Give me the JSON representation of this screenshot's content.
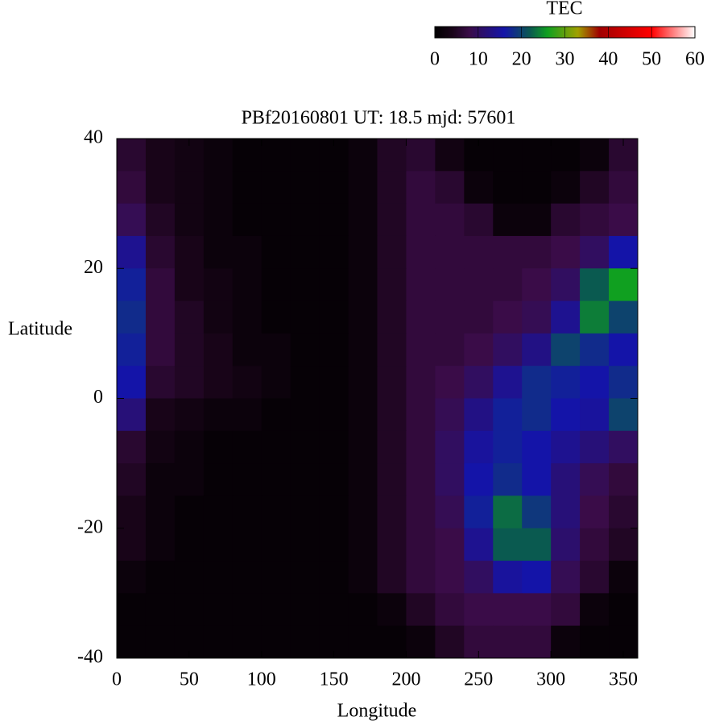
{
  "chart_data": {
    "type": "heatmap",
    "title": "PBf20160801  UT: 18.5  mjd: 57601",
    "x_label": "Longitude",
    "y_label": "Latitude",
    "colorbar_label": "TEC",
    "xlim": [
      0,
      360
    ],
    "ylim": [
      -40,
      40
    ],
    "xticks": [
      0,
      50,
      100,
      150,
      200,
      250,
      300,
      350
    ],
    "yticks": [
      -40,
      -20,
      0,
      20,
      40
    ],
    "zlim": [
      0,
      60
    ],
    "zticks": [
      0,
      10,
      20,
      30,
      40,
      50,
      60
    ],
    "colormap": [
      {
        "value": 0,
        "color": "#000000"
      },
      {
        "value": 4,
        "color": "#180418"
      },
      {
        "value": 8,
        "color": "#3a0c48"
      },
      {
        "value": 16,
        "color": "#1414a8"
      },
      {
        "value": 22,
        "color": "#0a5a50"
      },
      {
        "value": 26,
        "color": "#10a020"
      },
      {
        "value": 33,
        "color": "#a0a000"
      },
      {
        "value": 38,
        "color": "#a00000"
      },
      {
        "value": 50,
        "color": "#ff0000"
      },
      {
        "value": 60,
        "color": "#ffffff"
      }
    ],
    "x": [
      10,
      30,
      50,
      70,
      90,
      110,
      130,
      150,
      170,
      190,
      210,
      230,
      250,
      270,
      290,
      310,
      330,
      350
    ],
    "y": [
      37.5,
      32.5,
      27.5,
      22.5,
      17.5,
      12.5,
      7.5,
      2.5,
      -2.5,
      -7.5,
      -12.5,
      -17.5,
      -22.5,
      -27.5,
      -32.5,
      -37.5
    ],
    "z": [
      [
        6,
        4,
        3,
        2,
        1,
        1,
        1,
        1,
        2,
        5,
        6,
        3,
        1,
        1,
        1,
        1,
        2,
        6
      ],
      [
        7,
        4,
        3,
        2,
        1,
        1,
        1,
        1,
        2,
        5,
        7,
        6,
        2,
        1,
        1,
        2,
        5,
        7
      ],
      [
        9,
        5,
        3,
        2,
        1,
        1,
        1,
        1,
        2,
        5,
        7,
        7,
        6,
        2,
        2,
        6,
        7,
        8
      ],
      [
        14,
        6,
        4,
        2,
        2,
        1,
        1,
        1,
        2,
        5,
        7,
        7,
        7,
        7,
        7,
        8,
        10,
        16
      ],
      [
        17,
        7,
        4,
        3,
        2,
        1,
        1,
        1,
        2,
        5,
        7,
        7,
        7,
        7,
        8,
        10,
        22,
        26
      ],
      [
        18,
        7,
        5,
        3,
        2,
        1,
        1,
        1,
        2,
        5,
        7,
        7,
        7,
        8,
        9,
        14,
        24,
        20
      ],
      [
        17,
        7,
        5,
        4,
        2,
        2,
        1,
        1,
        2,
        5,
        7,
        7,
        8,
        10,
        13,
        20,
        18,
        16
      ],
      [
        16,
        6,
        5,
        4,
        3,
        2,
        1,
        1,
        2,
        5,
        7,
        8,
        10,
        14,
        18,
        17,
        16,
        18
      ],
      [
        12,
        4,
        3,
        2,
        2,
        1,
        1,
        1,
        2,
        5,
        7,
        9,
        13,
        17,
        18,
        16,
        15,
        20
      ],
      [
        6,
        3,
        2,
        1,
        1,
        1,
        1,
        1,
        2,
        5,
        7,
        10,
        15,
        17,
        16,
        14,
        12,
        10
      ],
      [
        5,
        2,
        2,
        1,
        1,
        1,
        1,
        1,
        2,
        5,
        7,
        10,
        16,
        18,
        16,
        12,
        9,
        7
      ],
      [
        4,
        2,
        1,
        1,
        1,
        1,
        1,
        1,
        2,
        5,
        7,
        9,
        17,
        23,
        19,
        12,
        8,
        6
      ],
      [
        4,
        2,
        1,
        1,
        1,
        1,
        1,
        1,
        2,
        5,
        7,
        8,
        14,
        22,
        22,
        11,
        7,
        5
      ],
      [
        2,
        1,
        1,
        1,
        1,
        1,
        1,
        1,
        2,
        5,
        7,
        8,
        10,
        15,
        16,
        9,
        6,
        2
      ],
      [
        1,
        1,
        1,
        1,
        1,
        1,
        1,
        1,
        1,
        2,
        5,
        7,
        8,
        8,
        8,
        7,
        2,
        1
      ],
      [
        1,
        1,
        1,
        1,
        1,
        1,
        1,
        1,
        1,
        1,
        2,
        5,
        7,
        7,
        7,
        2,
        1,
        1
      ]
    ]
  }
}
